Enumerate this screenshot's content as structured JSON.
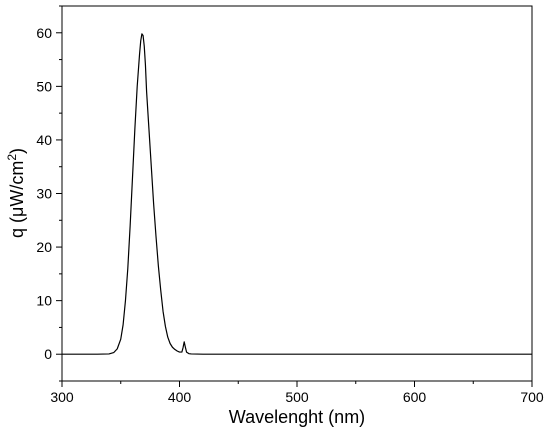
{
  "chart_data": {
    "type": "line",
    "title": "",
    "xlabel": "Wavelenght (nm)",
    "ylabel": {
      "main": "q (μW/cm",
      "sup": "2",
      "close": ")"
    },
    "xlim": [
      300,
      700
    ],
    "ylim": [
      -5,
      65
    ],
    "xticks": [
      300,
      400,
      500,
      600,
      700
    ],
    "yticks": [
      0,
      10,
      20,
      30,
      40,
      50,
      60
    ],
    "grid": false,
    "series": [
      {
        "values": [
          [
            300,
            0
          ],
          [
            330,
            0
          ],
          [
            340,
            0.05
          ],
          [
            344,
            0.3
          ],
          [
            347,
            1.0
          ],
          [
            350,
            2.8
          ],
          [
            352,
            5.5
          ],
          [
            354,
            10.0
          ],
          [
            356,
            16.0
          ],
          [
            358,
            24.0
          ],
          [
            360,
            33.0
          ],
          [
            362,
            42.0
          ],
          [
            364,
            50.0
          ],
          [
            366,
            56.0
          ],
          [
            367,
            58.5
          ],
          [
            368,
            59.8
          ],
          [
            369,
            59.5
          ],
          [
            370,
            57.5
          ],
          [
            371,
            54.0
          ],
          [
            372,
            49.0
          ],
          [
            374,
            42.0
          ],
          [
            376,
            35.0
          ],
          [
            378,
            28.0
          ],
          [
            380,
            22.0
          ],
          [
            382,
            16.5
          ],
          [
            384,
            12.0
          ],
          [
            386,
            8.0
          ],
          [
            388,
            5.2
          ],
          [
            390,
            3.2
          ],
          [
            392,
            2.0
          ],
          [
            394,
            1.3
          ],
          [
            396,
            0.9
          ],
          [
            398,
            0.6
          ],
          [
            400,
            0.4
          ],
          [
            402,
            0.4
          ],
          [
            403,
            1.2
          ],
          [
            404,
            2.3
          ],
          [
            405,
            1.3
          ],
          [
            406,
            0.4
          ],
          [
            408,
            0.1
          ],
          [
            410,
            0.05
          ],
          [
            420,
            0
          ],
          [
            500,
            0
          ],
          [
            600,
            0
          ],
          [
            700,
            0
          ]
        ]
      }
    ]
  }
}
